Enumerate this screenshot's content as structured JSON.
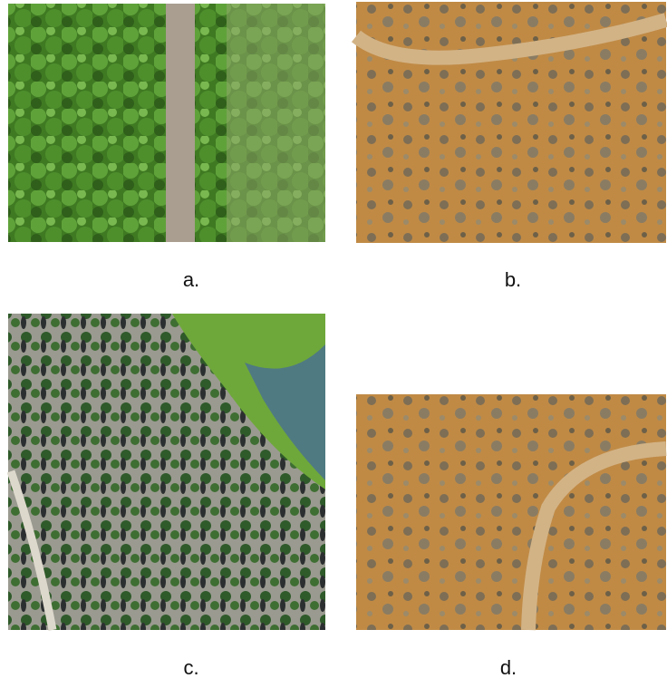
{
  "panels": [
    {
      "label": "a."
    },
    {
      "label": "b."
    },
    {
      "label": "c."
    },
    {
      "label": "d."
    }
  ]
}
